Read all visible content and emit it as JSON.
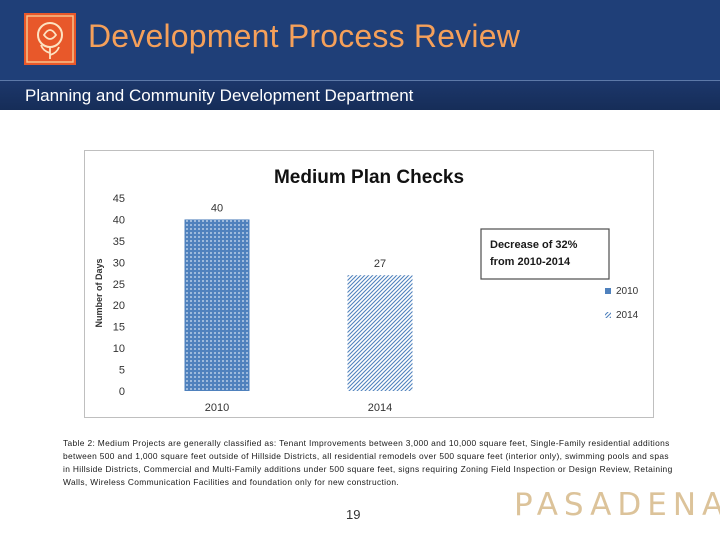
{
  "header": {
    "title": "Development Process Review",
    "subtitle": "Planning and Community Development Department",
    "logo_icon": "rose-logo-icon"
  },
  "chart_data": {
    "type": "bar",
    "title": "Medium Plan Checks",
    "categories": [
      "2010",
      "2014"
    ],
    "values": [
      40,
      27
    ],
    "data_labels": [
      "40",
      "27"
    ],
    "ylabel": "Number of Days",
    "xlabel": "",
    "ylim": [
      0,
      45
    ],
    "yticks": [
      "0",
      "5",
      "10",
      "15",
      "20",
      "25",
      "30",
      "35",
      "40",
      "45"
    ],
    "legend": [
      {
        "name": "2010",
        "pattern": "dotted",
        "color": "#4f81bd"
      },
      {
        "name": "2014",
        "pattern": "diagonal",
        "color": "#4f81bd"
      }
    ],
    "legend_position": "right",
    "annotation": {
      "line1": "Decrease of 32%",
      "line2": "from 2010-2014"
    },
    "grid": false
  },
  "caption": "Table 2: Medium Projects are generally classified as: Tenant Improvements between 3,000 and 10,000 square feet, Single-Family residential additions between 500 and 1,000 square feet outside of Hillside Districts, all residential remodels over 500 square feet (interior only), swimming pools and spas in Hillside Districts, Commercial and Multi-Family additions under 500 square feet, signs requiring Zoning Field Inspection or Design Review, Retaining Walls, Wireless Communication Facilities and foundation only for new construction.",
  "footer": {
    "page_number": "19",
    "brand": "PASADENA"
  },
  "colors": {
    "header_bg": "#1f3f78",
    "title_text": "#f5a05a",
    "bar_blue": "#4f81bd",
    "brand_text": "#dcc39a"
  }
}
